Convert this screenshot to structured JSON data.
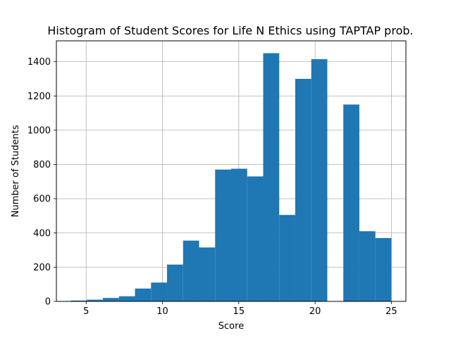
{
  "chart_data": {
    "type": "bar",
    "title": "Histogram of Student Scores for Life N Ethics using TAPTAP prob.",
    "xlabel": "Score",
    "ylabel": "Number of Students",
    "xlim": [
      3.05,
      25.95
    ],
    "ylim": [
      0,
      1522
    ],
    "xticks": [
      5,
      10,
      15,
      20,
      25
    ],
    "yticks": [
      0,
      200,
      400,
      600,
      800,
      1000,
      1200,
      1400
    ],
    "grid": true,
    "bar_color": "#1f77b4",
    "bins": [
      {
        "x0": 4.0,
        "x1": 5.05,
        "value": 5
      },
      {
        "x0": 5.05,
        "x1": 6.1,
        "value": 10
      },
      {
        "x0": 6.1,
        "x1": 7.15,
        "value": 20
      },
      {
        "x0": 7.15,
        "x1": 8.2,
        "value": 30
      },
      {
        "x0": 8.2,
        "x1": 9.25,
        "value": 75
      },
      {
        "x0": 9.25,
        "x1": 10.3,
        "value": 110
      },
      {
        "x0": 10.3,
        "x1": 11.35,
        "value": 215
      },
      {
        "x0": 11.35,
        "x1": 12.4,
        "value": 355
      },
      {
        "x0": 12.4,
        "x1": 13.45,
        "value": 315
      },
      {
        "x0": 13.45,
        "x1": 14.5,
        "value": 770
      },
      {
        "x0": 14.5,
        "x1": 15.55,
        "value": 775
      },
      {
        "x0": 15.55,
        "x1": 16.6,
        "value": 730
      },
      {
        "x0": 16.6,
        "x1": 17.65,
        "value": 1450
      },
      {
        "x0": 17.65,
        "x1": 18.7,
        "value": 505
      },
      {
        "x0": 18.7,
        "x1": 19.75,
        "value": 1300
      },
      {
        "x0": 19.75,
        "x1": 20.8,
        "value": 1415
      },
      {
        "x0": 20.8,
        "x1": 21.85,
        "value": 0
      },
      {
        "x0": 21.85,
        "x1": 22.9,
        "value": 1150
      },
      {
        "x0": 22.9,
        "x1": 23.95,
        "value": 410
      },
      {
        "x0": 23.95,
        "x1": 25.0,
        "value": 370
      }
    ]
  }
}
